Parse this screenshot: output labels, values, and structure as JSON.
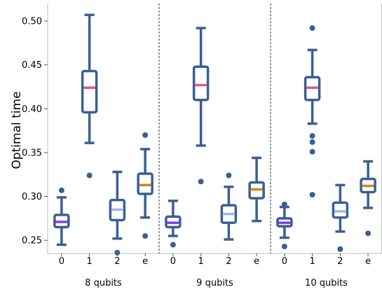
{
  "chart_data": {
    "type": "box",
    "ylabel": "Optimal time",
    "ylim": [
      0.235,
      0.52
    ],
    "yticks": [
      0.25,
      0.3,
      0.35,
      0.4,
      0.45,
      0.5
    ],
    "ytick_labels": [
      "0.25",
      "0.30",
      "0.35",
      "0.40",
      "0.45",
      "0.50"
    ],
    "grid": false,
    "box_color": "#3a5f95",
    "median_colors": {
      "0": "#7b3ff2",
      "1": "#e0558d",
      "2": "#9fb8e0",
      "e": "#c98a14"
    },
    "groups": [
      {
        "label": "8 qubits",
        "boxes": [
          {
            "category": "0",
            "whislo": 0.245,
            "q1": 0.265,
            "med": 0.271,
            "q3": 0.279,
            "whishi": 0.299,
            "fliers": [
              0.307
            ]
          },
          {
            "category": "1",
            "whislo": 0.361,
            "q1": 0.396,
            "med": 0.424,
            "q3": 0.443,
            "whishi": 0.507,
            "fliers": [
              0.324
            ]
          },
          {
            "category": "2",
            "whislo": 0.252,
            "q1": 0.273,
            "med": 0.285,
            "q3": 0.296,
            "whishi": 0.328,
            "fliers": [
              0.236
            ]
          },
          {
            "category": "e",
            "whislo": 0.276,
            "q1": 0.303,
            "med": 0.313,
            "q3": 0.326,
            "whishi": 0.354,
            "fliers": [
              0.37,
              0.255
            ]
          }
        ]
      },
      {
        "label": "9 qubits",
        "boxes": [
          {
            "category": "0",
            "whislo": 0.255,
            "q1": 0.265,
            "med": 0.27,
            "q3": 0.277,
            "whishi": 0.295,
            "fliers": [
              0.245
            ]
          },
          {
            "category": "1",
            "whislo": 0.358,
            "q1": 0.41,
            "med": 0.427,
            "q3": 0.448,
            "whishi": 0.492,
            "fliers": [
              0.317
            ]
          },
          {
            "category": "2",
            "whislo": 0.251,
            "q1": 0.27,
            "med": 0.28,
            "q3": 0.29,
            "whishi": 0.311,
            "fliers": [
              0.324
            ]
          },
          {
            "category": "e",
            "whislo": 0.272,
            "q1": 0.298,
            "med": 0.308,
            "q3": 0.316,
            "whishi": 0.344,
            "fliers": []
          }
        ]
      },
      {
        "label": "10 qubits",
        "boxes": [
          {
            "category": "0",
            "whislo": 0.253,
            "q1": 0.266,
            "med": 0.27,
            "q3": 0.275,
            "whishi": 0.288,
            "fliers": [
              0.291,
              0.243
            ]
          },
          {
            "category": "1",
            "whislo": 0.383,
            "q1": 0.41,
            "med": 0.424,
            "q3": 0.436,
            "whishi": 0.467,
            "fliers": [
              0.492,
              0.369,
              0.362,
              0.351,
              0.302
            ]
          },
          {
            "category": "2",
            "whislo": 0.26,
            "q1": 0.276,
            "med": 0.283,
            "q3": 0.293,
            "whishi": 0.313,
            "fliers": [
              0.24
            ]
          },
          {
            "category": "e",
            "whislo": 0.287,
            "q1": 0.305,
            "med": 0.312,
            "q3": 0.32,
            "whishi": 0.34,
            "fliers": [
              0.258
            ]
          }
        ]
      }
    ]
  }
}
